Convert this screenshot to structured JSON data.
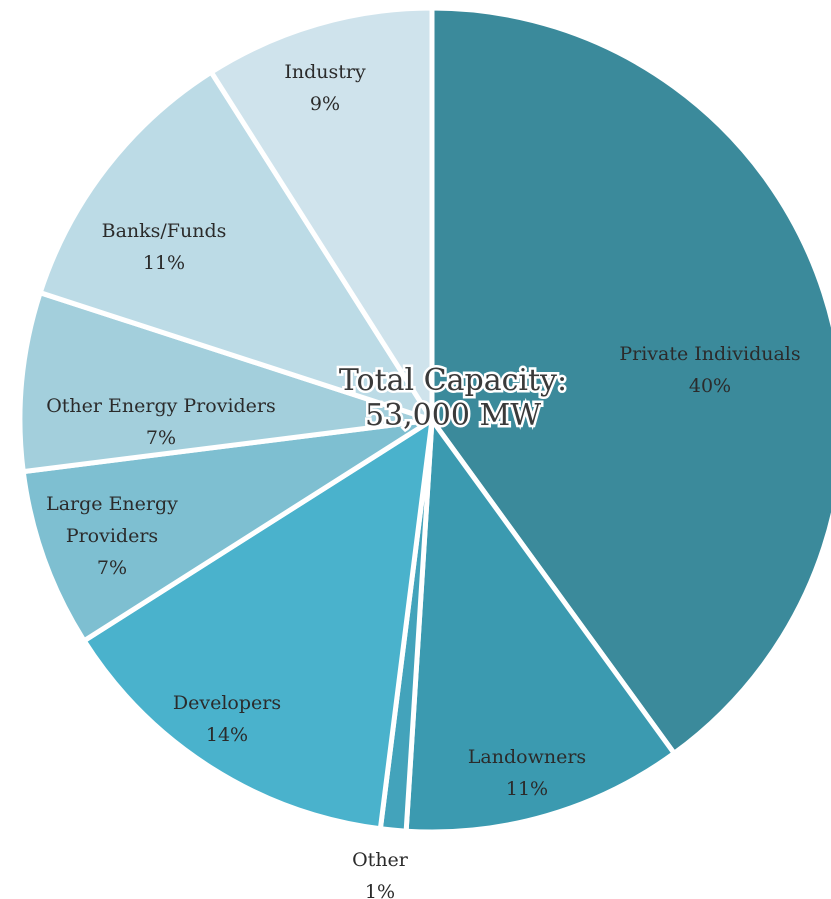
{
  "chart_data": {
    "type": "pie",
    "slices": [
      {
        "label": "Private Individuals",
        "value": 40,
        "pct_label": "40%",
        "color": "#3b8a9b"
      },
      {
        "label": "Landowners",
        "value": 11,
        "pct_label": "11%",
        "color": "#3b9ab0"
      },
      {
        "label": "Other",
        "value": 1,
        "pct_label": "1%",
        "color": "#43a3bb"
      },
      {
        "label": "Developers",
        "value": 14,
        "pct_label": "14%",
        "color": "#4ab2cc"
      },
      {
        "label": "Large Energy Providers",
        "value": 7,
        "pct_label": "7%",
        "color": "#7ebfd1"
      },
      {
        "label": "Other Energy Providers",
        "value": 7,
        "pct_label": "7%",
        "color": "#a3cfdc"
      },
      {
        "label": "Banks/Funds",
        "value": 11,
        "pct_label": "11%",
        "color": "#bcdbe6"
      },
      {
        "label": "Industry",
        "value": 9,
        "pct_label": "9%",
        "color": "#cfe3ec"
      }
    ],
    "center_text": {
      "line1": "Total Capacity:",
      "line2": "53,000 MW"
    }
  }
}
